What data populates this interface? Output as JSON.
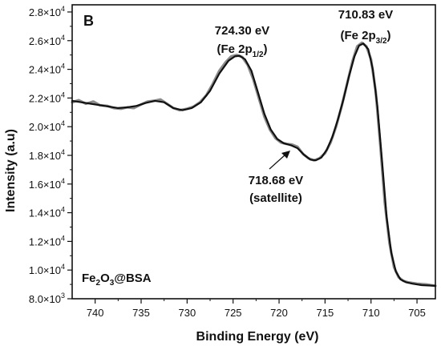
{
  "chart_data": {
    "type": "line",
    "panel_label": "B",
    "xlabel": "Binding Energy (eV)",
    "ylabel": "Intensity (a.u)",
    "xlim": [
      742.5,
      703
    ],
    "ylim": [
      8000,
      28500
    ],
    "x_reversed": true,
    "grid": false,
    "x_ticks": [
      740,
      735,
      730,
      725,
      720,
      715,
      710,
      705
    ],
    "x_tick_labels": [
      "740",
      "735",
      "730",
      "725",
      "720",
      "715",
      "710",
      "705"
    ],
    "y_ticks": [
      {
        "value": 8000,
        "mant": "8.0",
        "exp": "3"
      },
      {
        "value": 10000,
        "mant": "1.0",
        "exp": "4"
      },
      {
        "value": 12000,
        "mant": "1.2",
        "exp": "4"
      },
      {
        "value": 14000,
        "mant": "1.4",
        "exp": "4"
      },
      {
        "value": 16000,
        "mant": "1.6",
        "exp": "4"
      },
      {
        "value": 18000,
        "mant": "1.8",
        "exp": "4"
      },
      {
        "value": 20000,
        "mant": "2.0",
        "exp": "4"
      },
      {
        "value": 22000,
        "mant": "2.2",
        "exp": "4"
      },
      {
        "value": 24000,
        "mant": "2.4",
        "exp": "4"
      },
      {
        "value": 26000,
        "mant": "2.6",
        "exp": "4"
      },
      {
        "value": 28000,
        "mant": "2.8",
        "exp": "4"
      }
    ],
    "sample_label": {
      "main": "Fe",
      "sub1": "2",
      "mid": "O",
      "sub2": "3",
      "tail": "@BSA"
    },
    "annotations": [
      {
        "line1": "724.30 eV",
        "line2_main": "(Fe 2p",
        "line2_sub": "1/2",
        "line2_tail": ")"
      },
      {
        "line1": "710.83 eV",
        "line2_main": "(Fe 2p",
        "line2_sub": "3/2",
        "line2_tail": ")"
      },
      {
        "line1": "718.68 eV",
        "line2": "(satellite)"
      }
    ],
    "series": [
      {
        "style": "raw",
        "color": "#8a8a8a",
        "points": [
          [
            742.5,
            21700
          ],
          [
            741.8,
            21850
          ],
          [
            741.0,
            21600
          ],
          [
            740.2,
            21750
          ],
          [
            739.5,
            21500
          ],
          [
            738.7,
            21450
          ],
          [
            738.0,
            21300
          ],
          [
            737.2,
            21250
          ],
          [
            736.5,
            21350
          ],
          [
            735.8,
            21300
          ],
          [
            735.0,
            21550
          ],
          [
            734.3,
            21750
          ],
          [
            733.6,
            21800
          ],
          [
            732.9,
            21900
          ],
          [
            732.2,
            21600
          ],
          [
            731.5,
            21300
          ],
          [
            730.8,
            21150
          ],
          [
            730.0,
            21250
          ],
          [
            729.3,
            21400
          ],
          [
            728.6,
            21700
          ],
          [
            727.9,
            22200
          ],
          [
            727.2,
            23000
          ],
          [
            726.5,
            23900
          ],
          [
            725.8,
            24500
          ],
          [
            725.2,
            24900
          ],
          [
            724.6,
            25000
          ],
          [
            724.0,
            24850
          ],
          [
            723.4,
            24300
          ],
          [
            722.8,
            23300
          ],
          [
            722.2,
            22000
          ],
          [
            721.6,
            20700
          ],
          [
            721.0,
            19800
          ],
          [
            720.4,
            19200
          ],
          [
            719.8,
            18900
          ],
          [
            719.2,
            18800
          ],
          [
            718.6,
            18750
          ],
          [
            718.0,
            18600
          ],
          [
            717.4,
            18100
          ],
          [
            716.8,
            17800
          ],
          [
            716.2,
            17650
          ],
          [
            715.6,
            17800
          ],
          [
            715.0,
            18150
          ],
          [
            714.4,
            18900
          ],
          [
            713.8,
            20000
          ],
          [
            713.2,
            21400
          ],
          [
            712.6,
            23000
          ],
          [
            712.0,
            24600
          ],
          [
            711.5,
            25600
          ],
          [
            711.0,
            25850
          ],
          [
            710.5,
            25600
          ],
          [
            710.0,
            24700
          ],
          [
            709.5,
            22500
          ],
          [
            709.0,
            18800
          ],
          [
            708.5,
            14700
          ],
          [
            708.0,
            11900
          ],
          [
            707.5,
            10200
          ],
          [
            707.0,
            9500
          ],
          [
            706.5,
            9250
          ],
          [
            706.0,
            9150
          ],
          [
            705.0,
            9050
          ],
          [
            704.0,
            9000
          ],
          [
            703.0,
            8900
          ]
        ]
      },
      {
        "style": "fit",
        "color": "#111111",
        "points": [
          [
            742.5,
            21800
          ],
          [
            741.5,
            21700
          ],
          [
            740.5,
            21600
          ],
          [
            739.5,
            21500
          ],
          [
            738.5,
            21400
          ],
          [
            737.5,
            21300
          ],
          [
            736.5,
            21350
          ],
          [
            735.5,
            21450
          ],
          [
            734.5,
            21650
          ],
          [
            733.5,
            21800
          ],
          [
            732.5,
            21700
          ],
          [
            731.5,
            21300
          ],
          [
            730.5,
            21150
          ],
          [
            729.5,
            21300
          ],
          [
            728.5,
            21700
          ],
          [
            727.5,
            22500
          ],
          [
            726.5,
            23700
          ],
          [
            725.5,
            24600
          ],
          [
            724.8,
            24900
          ],
          [
            724.3,
            24950
          ],
          [
            723.7,
            24700
          ],
          [
            723.0,
            23900
          ],
          [
            722.3,
            22400
          ],
          [
            721.6,
            20900
          ],
          [
            720.9,
            19800
          ],
          [
            720.2,
            19150
          ],
          [
            719.5,
            18850
          ],
          [
            718.7,
            18700
          ],
          [
            718.0,
            18500
          ],
          [
            717.3,
            18050
          ],
          [
            716.6,
            17700
          ],
          [
            716.0,
            17650
          ],
          [
            715.4,
            17850
          ],
          [
            714.8,
            18400
          ],
          [
            714.2,
            19300
          ],
          [
            713.6,
            20500
          ],
          [
            713.0,
            21900
          ],
          [
            712.4,
            23500
          ],
          [
            711.8,
            24900
          ],
          [
            711.3,
            25650
          ],
          [
            710.83,
            25800
          ],
          [
            710.3,
            25400
          ],
          [
            709.8,
            24000
          ],
          [
            709.3,
            21400
          ],
          [
            708.8,
            17600
          ],
          [
            708.3,
            13700
          ],
          [
            707.8,
            11200
          ],
          [
            707.3,
            9900
          ],
          [
            706.8,
            9350
          ],
          [
            706.2,
            9150
          ],
          [
            705.5,
            9050
          ],
          [
            704.5,
            8950
          ],
          [
            703.0,
            8900
          ]
        ]
      }
    ]
  }
}
